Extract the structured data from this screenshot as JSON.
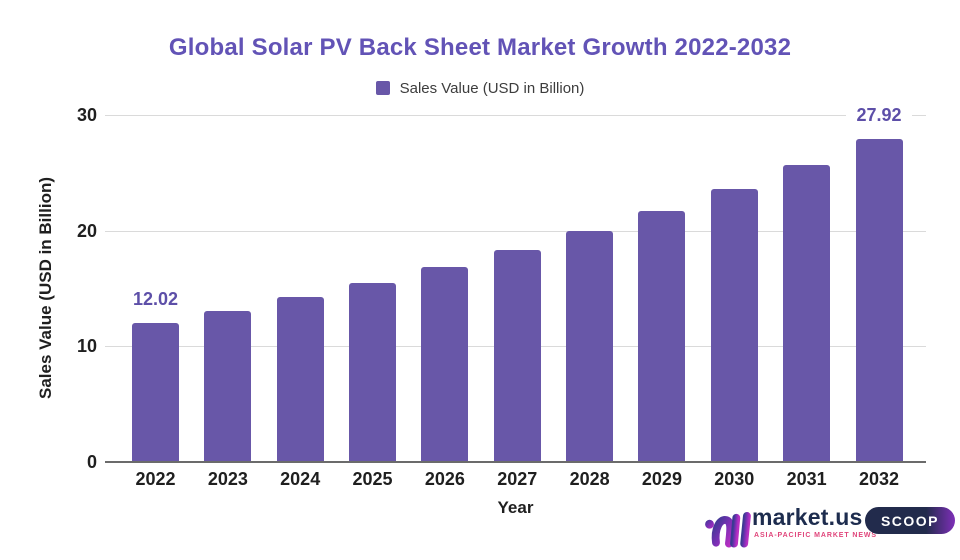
{
  "chart_data": {
    "type": "bar",
    "title": "Global Solar PV Back Sheet Market Growth 2022-2032",
    "legend_label": "Sales Value (USD in Billion)",
    "legend_position": "top",
    "xlabel": "Year",
    "ylabel": "Sales Value (USD in Billion)",
    "categories": [
      "2022",
      "2023",
      "2024",
      "2025",
      "2026",
      "2027",
      "2028",
      "2029",
      "2030",
      "2031",
      "2032"
    ],
    "values": [
      12.02,
      13.08,
      14.23,
      15.48,
      16.84,
      18.32,
      19.93,
      21.68,
      23.59,
      25.66,
      27.92
    ],
    "value_labels": [
      "12.02",
      "",
      "",
      "",
      "",
      "",
      "",
      "",
      "",
      "",
      "27.92"
    ],
    "yticks": [
      0,
      10,
      20,
      30
    ],
    "ylim": [
      0,
      30
    ],
    "grid": true,
    "bar_color": "#6857a8",
    "title_color": "#6253b6",
    "value_label_color": "#5d4fa8",
    "axis_text_color": "#1f1f1f",
    "gridline_color": "#dadada",
    "axis_line_color": "#6b6b6b"
  },
  "branding": {
    "wordmark": "market.us",
    "tagline": "ASIA-PACIFIC MARKET NEWS",
    "badge": "SCOOP",
    "wordmark_color": "#1d2c4e",
    "tagline_color": "#e0457b"
  }
}
